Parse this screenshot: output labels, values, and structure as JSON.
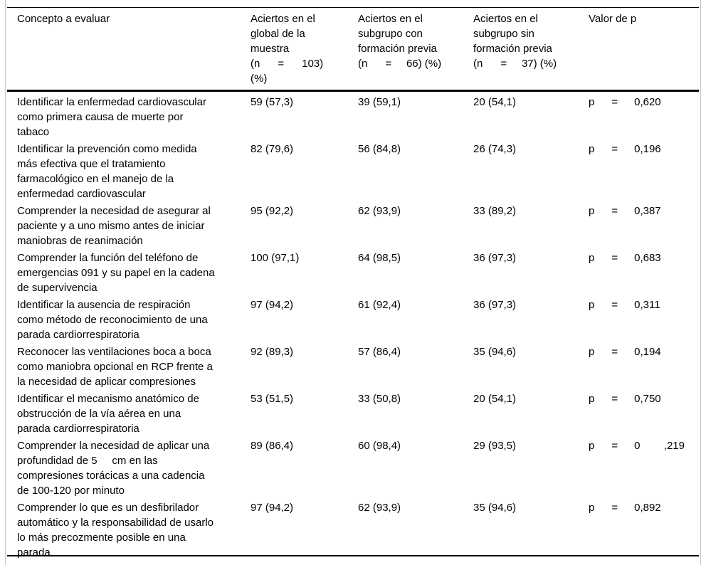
{
  "colors": {
    "background": "#ffffff",
    "text": "#000000",
    "rule": "#000000",
    "frame": "#c6c6c6"
  },
  "table": {
    "header": {
      "concept": "Concepto a evaluar",
      "global": "Aciertos en el\nglobal de la\nmuestra\n(n      =      103)\n(%)",
      "with_training": "Aciertos en el\nsubgrupo con\nformación previa\n(n      =     66) (%)",
      "without_training": "Aciertos en el\nsubgrupo sin\nformación previa\n(n      =     37) (%)",
      "p": "Valor de p"
    },
    "p_label": "p",
    "p_equals": "=",
    "rows": [
      {
        "concept": "Identificar la enfermedad cardiovascular\ncomo primera causa de muerte por\ntabaco",
        "global": "59 (57,3)",
        "with_training": "39 (59,1)",
        "without_training": "20 (54,1)",
        "p_value": "0,620"
      },
      {
        "concept": "Identificar la prevención como medida\nmás efectiva que el tratamiento\nfarmacológico en el manejo de la\nenfermedad cardiovascular",
        "global": "82 (79,6)",
        "with_training": "56 (84,8)",
        "without_training": "26 (74,3)",
        "p_value": "0,196"
      },
      {
        "concept": "Comprender la necesidad de asegurar al\npaciente y a uno mismo antes de iniciar\nmaniobras de reanimación",
        "global": "95 (92,2)",
        "with_training": "62 (93,9)",
        "without_training": "33 (89,2)",
        "p_value": "0,387"
      },
      {
        "concept": "Comprender la función del teléfono de\nemergencias 091 y su papel en la cadena\nde supervivencia",
        "global": "100 (97,1)",
        "with_training": "64 (98,5)",
        "without_training": "36 (97,3)",
        "p_value": "0,683"
      },
      {
        "concept": "Identificar la ausencia de respiración\ncomo método de reconocimiento de una\nparada cardiorrespiratoria",
        "global": "97 (94,2)",
        "with_training": "61 (92,4)",
        "without_training": "36 (97,3)",
        "p_value": "0,311"
      },
      {
        "concept": "Reconocer las ventilaciones boca a boca\ncomo maniobra opcional en RCP frente a\nla necesidad de aplicar compresiones",
        "global": "92 (89,3)",
        "with_training": "57 (86,4)",
        "without_training": "35 (94,6)",
        "p_value": "0,194"
      },
      {
        "concept": "Identificar el mecanismo anatómico de\nobstrucción de la vía aérea en una\nparada cardiorrespiratoria",
        "global": "53 (51,5)",
        "with_training": "33 (50,8)",
        "without_training": "20 (54,1)",
        "p_value": "0,750"
      },
      {
        "concept": "Comprender la necesidad de aplicar una\nprofundidad de 5     cm en las\ncompresiones torácicas a una cadencia\nde 100-120 por minuto",
        "global": "89 (86,4)",
        "with_training": "60 (98,4)",
        "without_training": "29 (93,5)",
        "p_value": "0        ,219"
      },
      {
        "concept": "Comprender lo que es un desfibrilador\nautomático y la responsabilidad de usarlo\nlo más precozmente posible en una\nparada",
        "global": "97 (94,2)",
        "with_training": "62 (93,9)",
        "without_training": "35 (94,6)",
        "p_value": "0,892"
      }
    ]
  }
}
